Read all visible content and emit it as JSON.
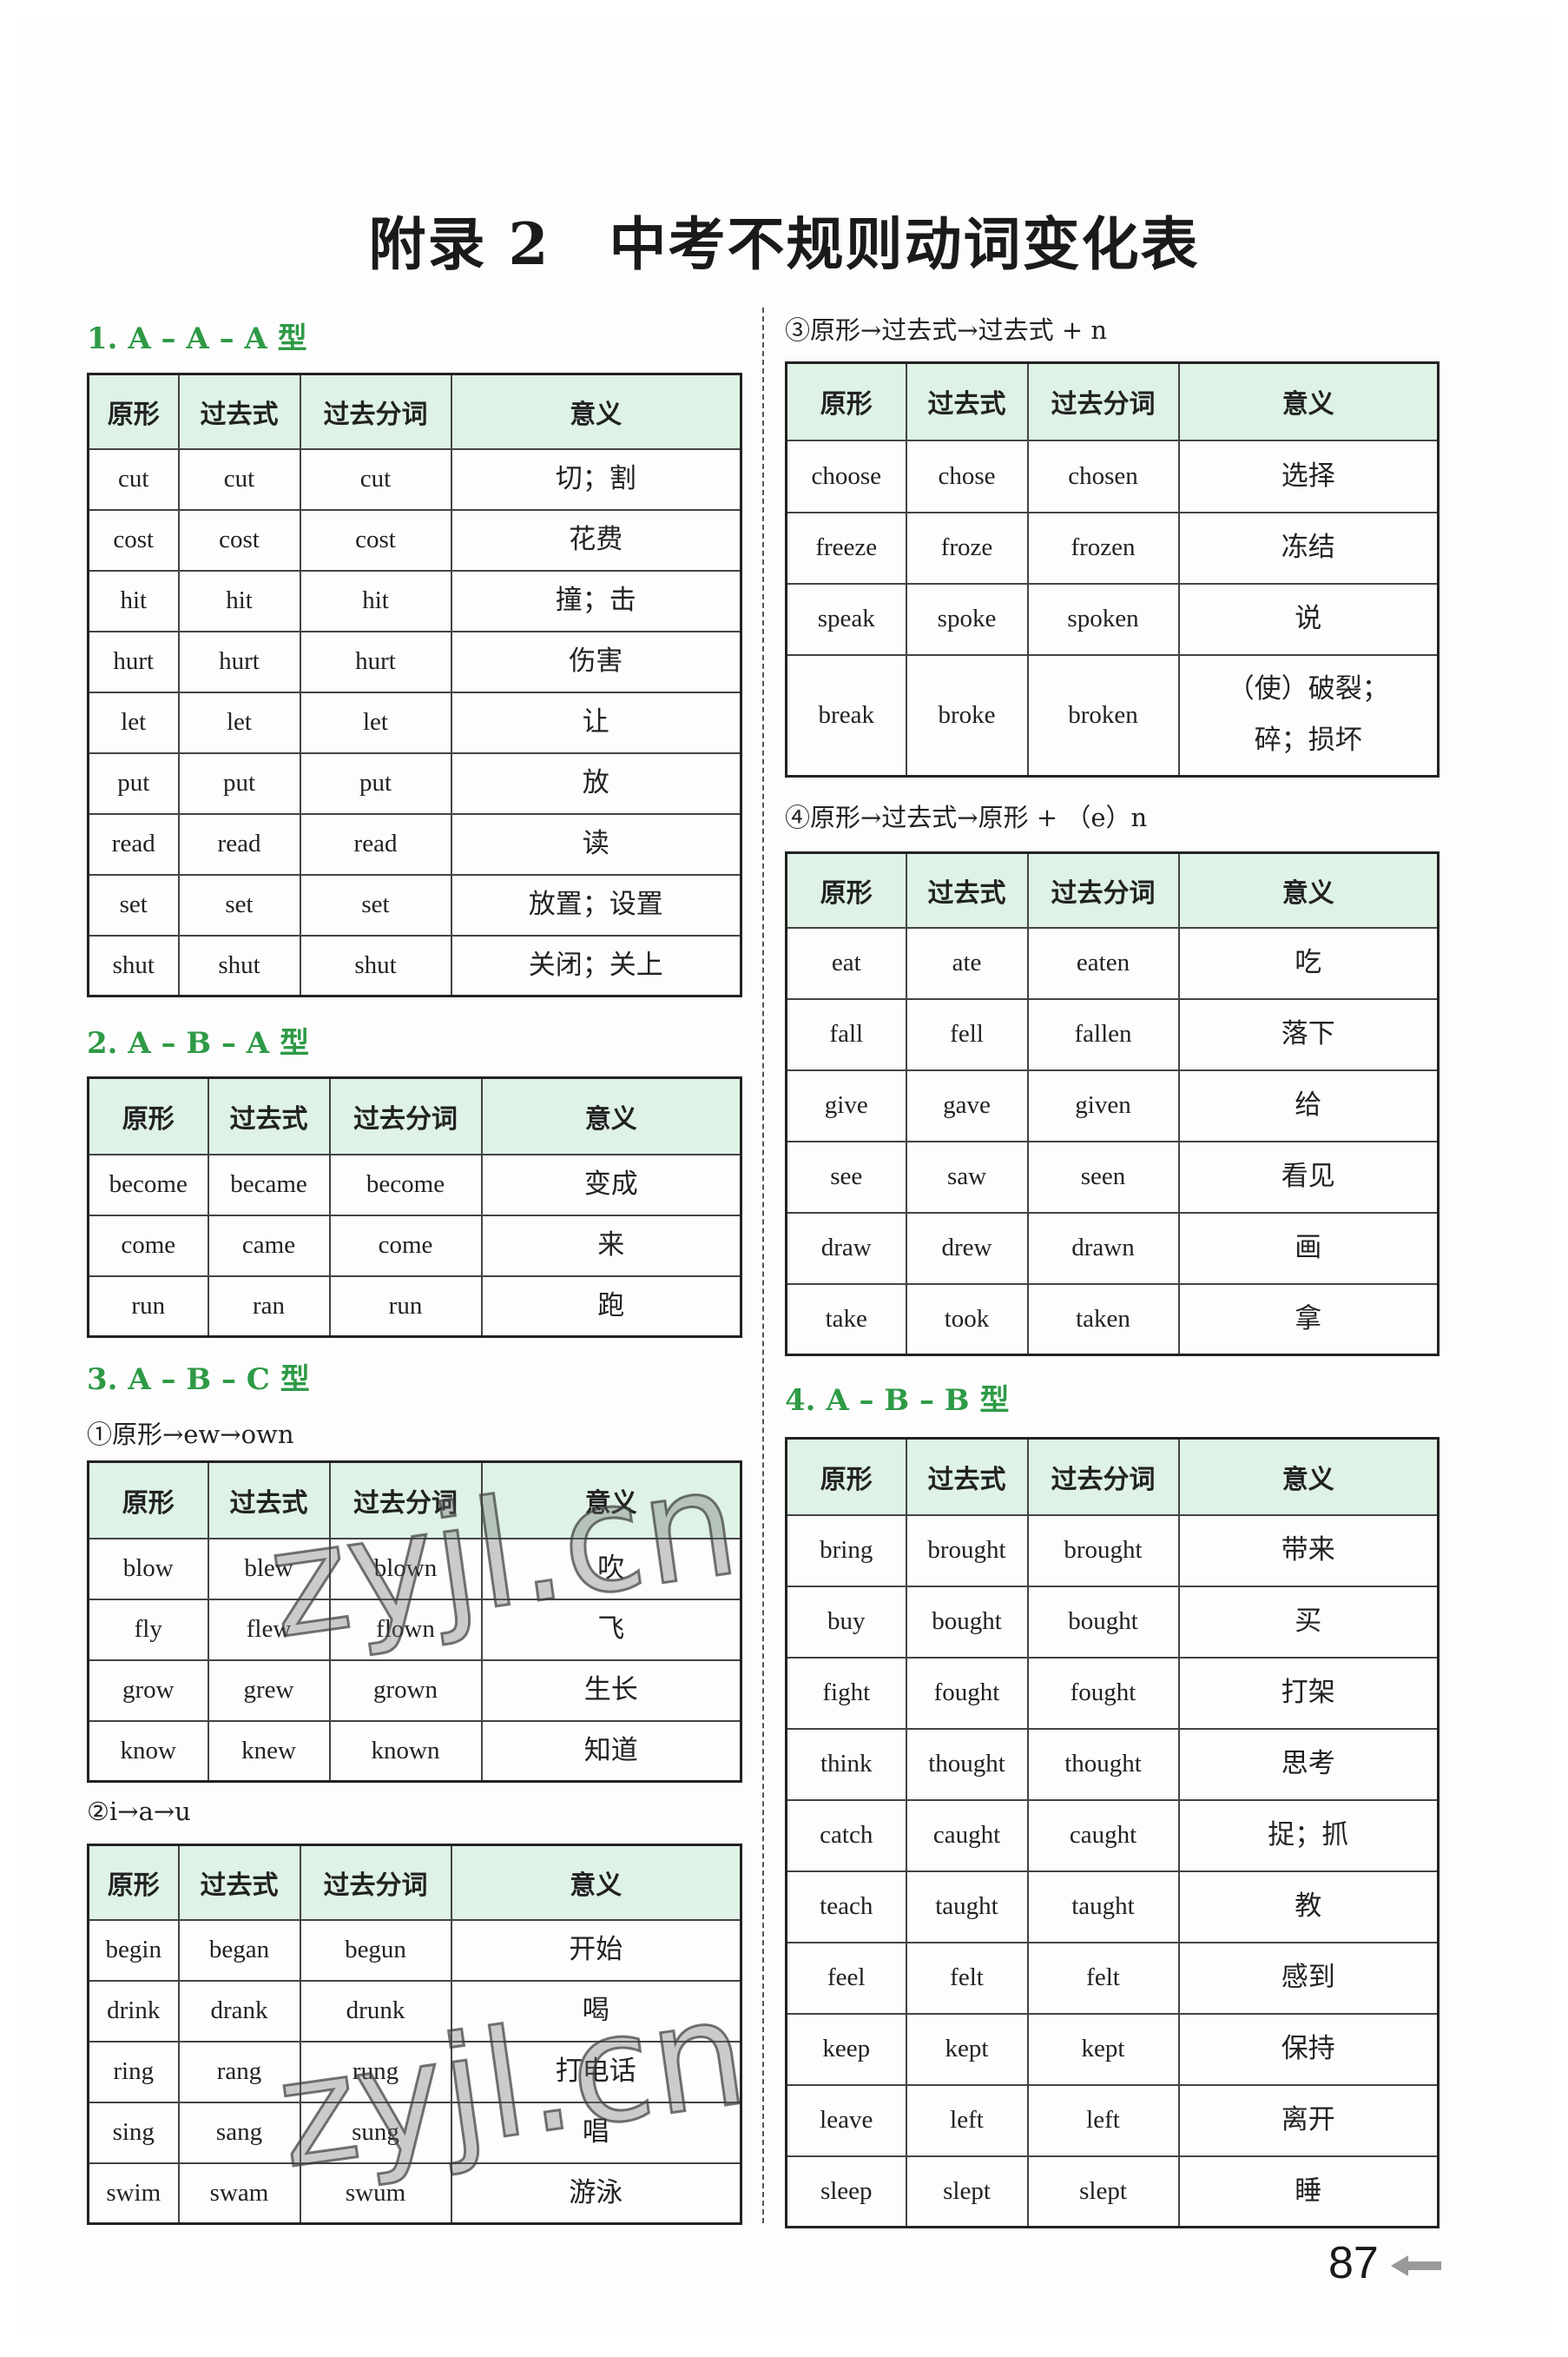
{
  "title": "附录 2　中考不规则动词变化表",
  "headers": [
    "原形",
    "过去式",
    "过去分词",
    "意义"
  ],
  "sections": {
    "s1": {
      "heading": "1. A – A – A 型"
    },
    "s2": {
      "heading": "2. A – B – A 型"
    },
    "s3": {
      "heading": "3. A – B – C 型",
      "sub1": "①原形→ew→own",
      "sub2": "②i→a→u",
      "sub3": "③原形→过去式→过去式 + n",
      "sub4": "④原形→过去式→原形 + （e）n"
    },
    "s4": {
      "heading": "4. A – B – B 型"
    }
  },
  "tables": {
    "t1": [
      [
        "cut",
        "cut",
        "cut",
        "切；割"
      ],
      [
        "cost",
        "cost",
        "cost",
        "花费"
      ],
      [
        "hit",
        "hit",
        "hit",
        "撞；击"
      ],
      [
        "hurt",
        "hurt",
        "hurt",
        "伤害"
      ],
      [
        "let",
        "let",
        "let",
        "让"
      ],
      [
        "put",
        "put",
        "put",
        "放"
      ],
      [
        "read",
        "read",
        "read",
        "读"
      ],
      [
        "set",
        "set",
        "set",
        "放置；设置"
      ],
      [
        "shut",
        "shut",
        "shut",
        "关闭；关上"
      ]
    ],
    "t2": [
      [
        "become",
        "became",
        "become",
        "变成"
      ],
      [
        "come",
        "came",
        "come",
        "来"
      ],
      [
        "run",
        "ran",
        "run",
        "跑"
      ]
    ],
    "t3a": [
      [
        "blow",
        "blew",
        "blown",
        "吹"
      ],
      [
        "fly",
        "flew",
        "flown",
        "飞"
      ],
      [
        "grow",
        "grew",
        "grown",
        "生长"
      ],
      [
        "know",
        "knew",
        "known",
        "知道"
      ]
    ],
    "t3b": [
      [
        "begin",
        "began",
        "begun",
        "开始"
      ],
      [
        "drink",
        "drank",
        "drunk",
        "喝"
      ],
      [
        "ring",
        "rang",
        "rung",
        "打电话"
      ],
      [
        "sing",
        "sang",
        "sung",
        "唱"
      ],
      [
        "swim",
        "swam",
        "swum",
        "游泳"
      ]
    ],
    "t3c": [
      [
        "choose",
        "chose",
        "chosen",
        "选择"
      ],
      [
        "freeze",
        "froze",
        "frozen",
        "冻结"
      ],
      [
        "speak",
        "spoke",
        "spoken",
        "说"
      ],
      [
        "break",
        "broke",
        "broken",
        "（使）破裂；\n碎；损坏"
      ]
    ],
    "t3d": [
      [
        "eat",
        "ate",
        "eaten",
        "吃"
      ],
      [
        "fall",
        "fell",
        "fallen",
        "落下"
      ],
      [
        "give",
        "gave",
        "given",
        "给"
      ],
      [
        "see",
        "saw",
        "seen",
        "看见"
      ],
      [
        "draw",
        "drew",
        "drawn",
        "画"
      ],
      [
        "take",
        "took",
        "taken",
        "拿"
      ]
    ],
    "t4": [
      [
        "bring",
        "brought",
        "brought",
        "带来"
      ],
      [
        "buy",
        "bought",
        "bought",
        "买"
      ],
      [
        "fight",
        "fought",
        "fought",
        "打架"
      ],
      [
        "think",
        "thought",
        "thought",
        "思考"
      ],
      [
        "catch",
        "caught",
        "caught",
        "捉；抓"
      ],
      [
        "teach",
        "taught",
        "taught",
        "教"
      ],
      [
        "feel",
        "felt",
        "felt",
        "感到"
      ],
      [
        "keep",
        "kept",
        "kept",
        "保持"
      ],
      [
        "leave",
        "left",
        "left",
        "离开"
      ],
      [
        "sleep",
        "slept",
        "slept",
        "睡"
      ]
    ]
  },
  "page_number": "87",
  "watermark": "zyjl.cn",
  "colors": {
    "heading_green": "#2e9a46",
    "header_bg": "#def2e5"
  }
}
